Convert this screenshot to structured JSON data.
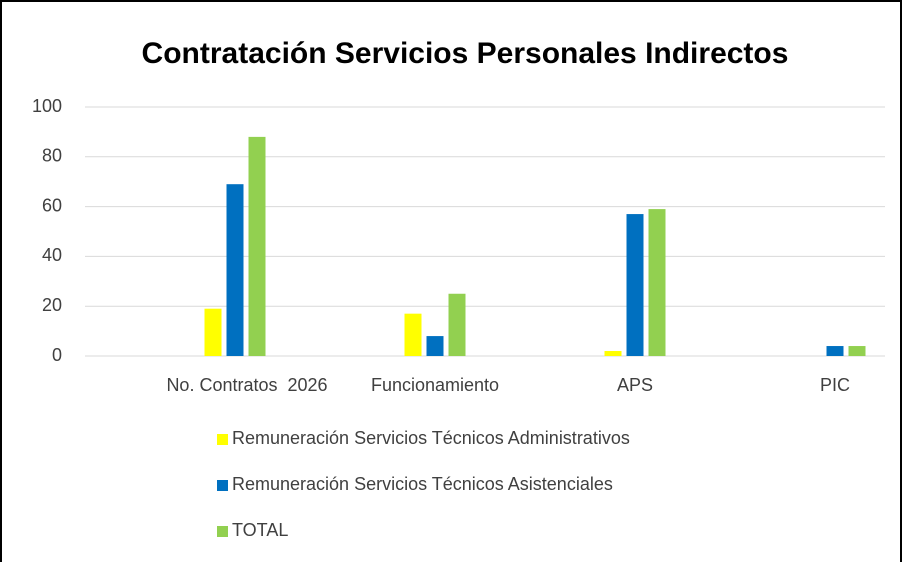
{
  "chart_data": {
    "type": "bar",
    "title": "Contratación Servicios Personales Indirectos",
    "categories": [
      "No. Contratos  2026",
      "Funcionamiento",
      "APS",
      "PIC"
    ],
    "series": [
      {
        "name": "Remuneración Servicios Técnicos Administrativos",
        "color": "#ffff00",
        "values": [
          19,
          17,
          2,
          0
        ]
      },
      {
        "name": "Remuneración Servicios Técnicos Asistenciales",
        "color": "#0070c0",
        "values": [
          69,
          8,
          57,
          4
        ]
      },
      {
        "name": "TOTAL",
        "color": "#92d050",
        "values": [
          88,
          25,
          59,
          4
        ]
      }
    ],
    "ylim": [
      0,
      100
    ],
    "yticks": [
      0,
      20,
      40,
      60,
      80,
      100
    ],
    "grid": true,
    "legend": "bottom"
  }
}
